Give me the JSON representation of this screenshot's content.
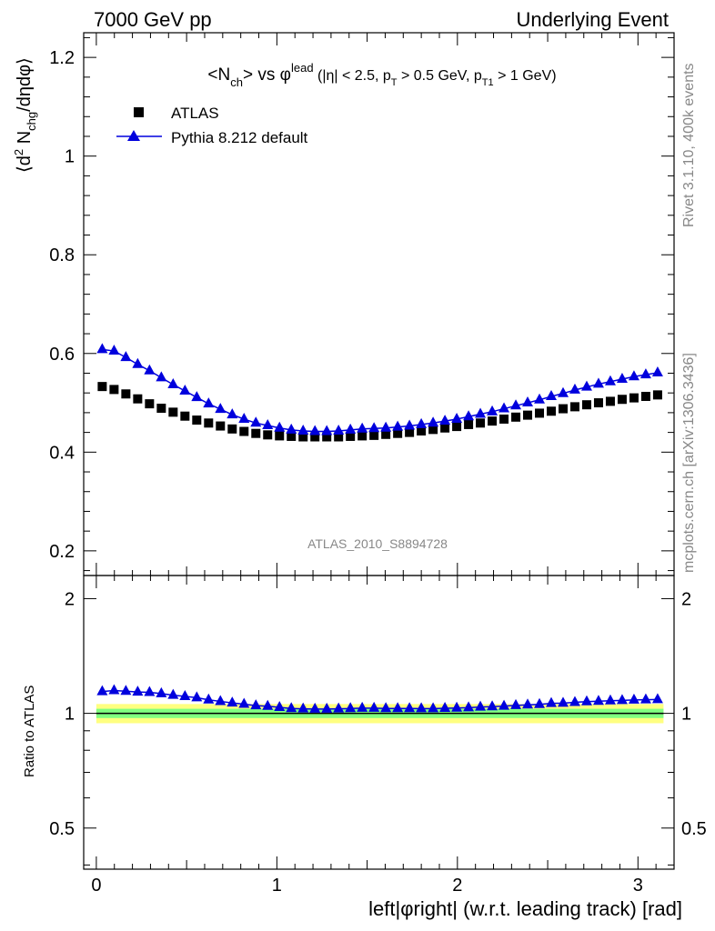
{
  "header": {
    "left": "7000 GeV pp",
    "right": "Underlying Event"
  },
  "side_labels": {
    "rivet": "Rivet 3.1.10,  400k events",
    "mcplots": "mcplots.cern.ch [arXiv:1306.3436]"
  },
  "analysis_tag": "ATLAS_2010_S8894728",
  "colors": {
    "data": "#000000",
    "mc": "#0000dd",
    "band_inner": "#80ff80",
    "band_outer": "#ffff80"
  },
  "chart_data": [
    {
      "type": "scatter",
      "title": "<N_ch> vs φ^lead (|η| < 2.5, p_T > 0.5 GeV, p_T1 > 1 GeV)",
      "xlabel": "",
      "ylabel": "⟨d² N_chg/dηdφ⟩",
      "xlim": [
        -0.07,
        3.2
      ],
      "ylim": [
        0.15,
        1.25
      ],
      "yticks": [
        "0.2",
        "0.4",
        "0.6",
        "0.8",
        "1",
        "1.2"
      ],
      "legend": {
        "placement": "top-left",
        "entries": [
          "ATLAS",
          "Pythia 8.212 default"
        ]
      },
      "x": [
        0.0327,
        0.0982,
        0.1636,
        0.2291,
        0.2945,
        0.36,
        0.4254,
        0.4909,
        0.5563,
        0.6218,
        0.6872,
        0.7527,
        0.8181,
        0.8836,
        0.949,
        1.0145,
        1.0799,
        1.1454,
        1.2108,
        1.2763,
        1.3417,
        1.4072,
        1.4726,
        1.5381,
        1.6035,
        1.669,
        1.7344,
        1.7999,
        1.8653,
        1.9308,
        1.9962,
        2.0617,
        2.1271,
        2.1926,
        2.258,
        2.3235,
        2.3889,
        2.4544,
        2.5198,
        2.5853,
        2.6507,
        2.7162,
        2.7816,
        2.8471,
        2.9125,
        2.978,
        3.0434,
        3.1089
      ],
      "series": [
        {
          "name": "ATLAS",
          "marker": "square",
          "values": [
            0.533,
            0.527,
            0.518,
            0.508,
            0.498,
            0.489,
            0.481,
            0.473,
            0.465,
            0.459,
            0.453,
            0.447,
            0.442,
            0.438,
            0.435,
            0.433,
            0.432,
            0.431,
            0.431,
            0.431,
            0.431,
            0.432,
            0.433,
            0.434,
            0.436,
            0.438,
            0.44,
            0.443,
            0.446,
            0.449,
            0.452,
            0.456,
            0.459,
            0.463,
            0.467,
            0.471,
            0.475,
            0.479,
            0.483,
            0.488,
            0.492,
            0.496,
            0.5,
            0.503,
            0.507,
            0.51,
            0.513,
            0.516
          ]
        },
        {
          "name": "Pythia 8.212 default",
          "marker": "triangle",
          "values": [
            0.608,
            0.605,
            0.592,
            0.578,
            0.565,
            0.551,
            0.537,
            0.524,
            0.511,
            0.498,
            0.487,
            0.476,
            0.467,
            0.459,
            0.454,
            0.449,
            0.445,
            0.443,
            0.442,
            0.442,
            0.443,
            0.445,
            0.447,
            0.448,
            0.449,
            0.451,
            0.453,
            0.456,
            0.459,
            0.463,
            0.467,
            0.472,
            0.477,
            0.482,
            0.488,
            0.494,
            0.5,
            0.506,
            0.513,
            0.519,
            0.526,
            0.532,
            0.538,
            0.543,
            0.548,
            0.553,
            0.557,
            0.561
          ]
        }
      ]
    },
    {
      "type": "scatter",
      "title": "",
      "xlabel": "left|φright| (w.r.t. leading track) [rad]",
      "ylabel": "Ratio to ATLAS",
      "xlim": [
        -0.07,
        3.2
      ],
      "ylim": [
        0.39,
        2.3
      ],
      "xticks": [
        "0",
        "1",
        "2",
        "3"
      ],
      "yticks": [
        "0.5",
        "1",
        "2"
      ],
      "bands": {
        "inner_half_width": 0.028,
        "outer_half_width": 0.058
      },
      "series": [
        {
          "name": "Pythia 8.212 default",
          "marker": "triangle",
          "values": [
            1.141,
            1.148,
            1.143,
            1.138,
            1.135,
            1.127,
            1.116,
            1.108,
            1.099,
            1.085,
            1.075,
            1.065,
            1.057,
            1.048,
            1.044,
            1.037,
            1.03,
            1.028,
            1.026,
            1.026,
            1.028,
            1.03,
            1.032,
            1.032,
            1.03,
            1.03,
            1.03,
            1.029,
            1.029,
            1.031,
            1.033,
            1.035,
            1.039,
            1.041,
            1.045,
            1.049,
            1.053,
            1.056,
            1.062,
            1.064,
            1.069,
            1.073,
            1.076,
            1.079,
            1.081,
            1.084,
            1.086,
            1.087
          ]
        }
      ]
    }
  ]
}
